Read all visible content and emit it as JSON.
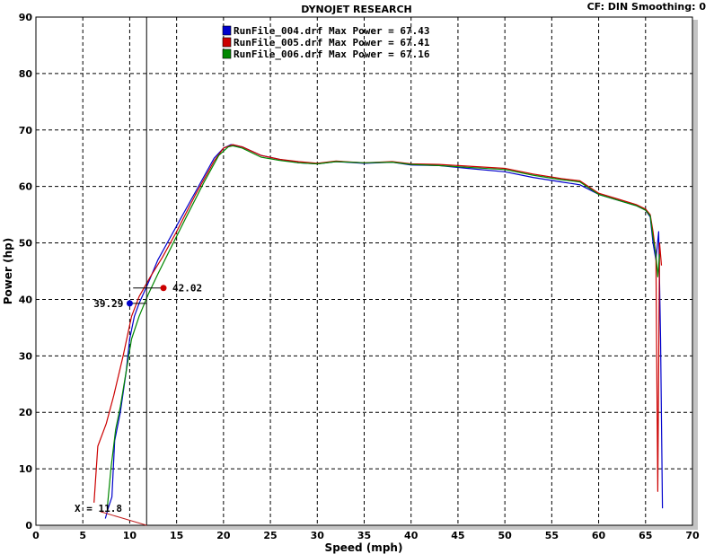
{
  "header": {
    "title": "DYNOJET RESEARCH",
    "status": "CF: DIN  Smoothing: 0"
  },
  "chart_data": {
    "type": "line",
    "xlabel": "Speed (mph)",
    "ylabel": "Power (hp)",
    "xlim": [
      0,
      70
    ],
    "ylim": [
      0,
      90
    ],
    "xticks": [
      0,
      5,
      10,
      15,
      20,
      25,
      30,
      35,
      40,
      45,
      50,
      55,
      60,
      65,
      70
    ],
    "yticks": [
      0,
      10,
      20,
      30,
      40,
      50,
      60,
      70,
      80,
      90
    ],
    "grid": true,
    "legend_position": "top-center",
    "legend": [
      "RunFile_004.drf Max Power = 67.43",
      "RunFile_005.drf Max Power = 67.41",
      "RunFile_006.drf Max Power = 67.16"
    ],
    "series": [
      {
        "name": "RunFile_004.drf",
        "color": "#0000cc",
        "points": [
          [
            7.4,
            1.2
          ],
          [
            7.7,
            3
          ],
          [
            8.1,
            5
          ],
          [
            8.4,
            15
          ],
          [
            9,
            20
          ],
          [
            9.6,
            27
          ],
          [
            10,
            33
          ],
          [
            10.5,
            37
          ],
          [
            11,
            39.3
          ],
          [
            12,
            43
          ],
          [
            13,
            47
          ],
          [
            15,
            53
          ],
          [
            17,
            59
          ],
          [
            19,
            65
          ],
          [
            20,
            66.8
          ],
          [
            20.8,
            67.4
          ],
          [
            22,
            67
          ],
          [
            24,
            65.5
          ],
          [
            26,
            64.8
          ],
          [
            28,
            64.2
          ],
          [
            30,
            64
          ],
          [
            32,
            64.4
          ],
          [
            35,
            64.1
          ],
          [
            38,
            64.3
          ],
          [
            40,
            63.8
          ],
          [
            43,
            63.7
          ],
          [
            46,
            63.2
          ],
          [
            50,
            62.6
          ],
          [
            53,
            61.6
          ],
          [
            56,
            60.8
          ],
          [
            58,
            60.3
          ],
          [
            60,
            58.6
          ],
          [
            62,
            57.6
          ],
          [
            64,
            56.6
          ],
          [
            65,
            55.8
          ],
          [
            65.5,
            54.6
          ],
          [
            65.8,
            50
          ],
          [
            66.1,
            47
          ],
          [
            66.4,
            52
          ],
          [
            66.6,
            33
          ],
          [
            66.8,
            3
          ]
        ]
      },
      {
        "name": "RunFile_005.drf",
        "color": "#cc0000",
        "points": [
          [
            6.2,
            4
          ],
          [
            6.6,
            14
          ],
          [
            7.5,
            18
          ],
          [
            8.3,
            23
          ],
          [
            9.3,
            30
          ],
          [
            10.2,
            37
          ],
          [
            11,
            40.5
          ],
          [
            12.2,
            44
          ],
          [
            13.5,
            47.5
          ],
          [
            15,
            52
          ],
          [
            17,
            58.5
          ],
          [
            19,
            64.5
          ],
          [
            20,
            66.8
          ],
          [
            21,
            67.4
          ],
          [
            22,
            67
          ],
          [
            24,
            65.5
          ],
          [
            26,
            64.8
          ],
          [
            28,
            64.4
          ],
          [
            30,
            64.1
          ],
          [
            32,
            64.5
          ],
          [
            35,
            64.2
          ],
          [
            38,
            64.4
          ],
          [
            40,
            64
          ],
          [
            43,
            63.9
          ],
          [
            46,
            63.6
          ],
          [
            50,
            63.2
          ],
          [
            53,
            62.2
          ],
          [
            56,
            61.4
          ],
          [
            58,
            61
          ],
          [
            60,
            58.8
          ],
          [
            62,
            57.8
          ],
          [
            64,
            56.8
          ],
          [
            65,
            56
          ],
          [
            65.5,
            55
          ],
          [
            65.8,
            52
          ],
          [
            66.1,
            48
          ],
          [
            66.3,
            6
          ],
          [
            66.5,
            50
          ],
          [
            66.7,
            46
          ]
        ]
      },
      {
        "name": "RunFile_006.drf",
        "color": "#008800",
        "points": [
          [
            7.6,
            3
          ],
          [
            8,
            10
          ],
          [
            8.5,
            17
          ],
          [
            9,
            21
          ],
          [
            9.7,
            28
          ],
          [
            10.2,
            33
          ],
          [
            11,
            37
          ],
          [
            12,
            41
          ],
          [
            13,
            44.5
          ],
          [
            14.5,
            49.5
          ],
          [
            16,
            54.5
          ],
          [
            18,
            61
          ],
          [
            19.5,
            65.5
          ],
          [
            20.5,
            67
          ],
          [
            21,
            67.2
          ],
          [
            22,
            66.8
          ],
          [
            24,
            65.2
          ],
          [
            26,
            64.6
          ],
          [
            28,
            64.2
          ],
          [
            30,
            64
          ],
          [
            32,
            64.4
          ],
          [
            35,
            64.2
          ],
          [
            38,
            64.3
          ],
          [
            40,
            63.9
          ],
          [
            43,
            63.7
          ],
          [
            46,
            63.4
          ],
          [
            50,
            63
          ],
          [
            53,
            62
          ],
          [
            56,
            61.2
          ],
          [
            58,
            60.8
          ],
          [
            60,
            58.6
          ],
          [
            62,
            57.6
          ],
          [
            64,
            56.6
          ],
          [
            65,
            55.8
          ],
          [
            65.5,
            54.8
          ],
          [
            65.8,
            51
          ],
          [
            66.1,
            48
          ],
          [
            66.3,
            44
          ],
          [
            66.5,
            48
          ]
        ]
      }
    ],
    "cursor": {
      "x": 11.8,
      "label": "X = 11.8"
    },
    "markers": [
      {
        "label": "39.29",
        "x": 10,
        "y": 39.29,
        "color": "#0000cc"
      },
      {
        "label": "42.02",
        "x": 13.6,
        "y": 42.02,
        "color": "#cc0000"
      }
    ]
  }
}
